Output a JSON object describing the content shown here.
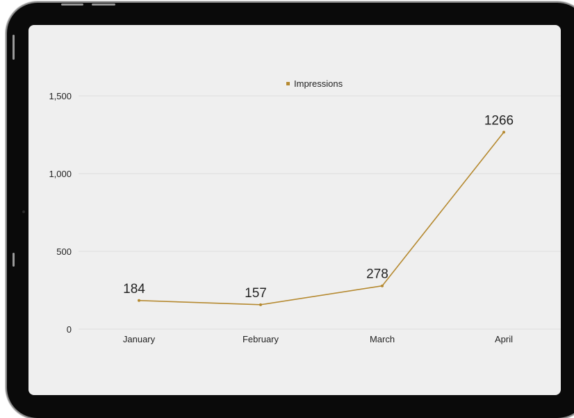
{
  "chart_data": {
    "type": "line",
    "categories": [
      "January",
      "February",
      "March",
      "April"
    ],
    "series": [
      {
        "name": "Impressions",
        "values": [
          184,
          157,
          278,
          1266
        ]
      }
    ],
    "ylim": [
      0,
      1500
    ],
    "yticks": [
      0,
      500,
      1000,
      1500
    ],
    "ytick_labels": [
      "0",
      "500",
      "1,000",
      "1,500"
    ],
    "data_labels": [
      "184",
      "157",
      "278",
      "1266"
    ],
    "grid": true,
    "legend": "top-center",
    "colors": {
      "series": "#b5892f",
      "grid": "#dcdcdc",
      "text": "#222222",
      "screen": "#efefef"
    }
  }
}
